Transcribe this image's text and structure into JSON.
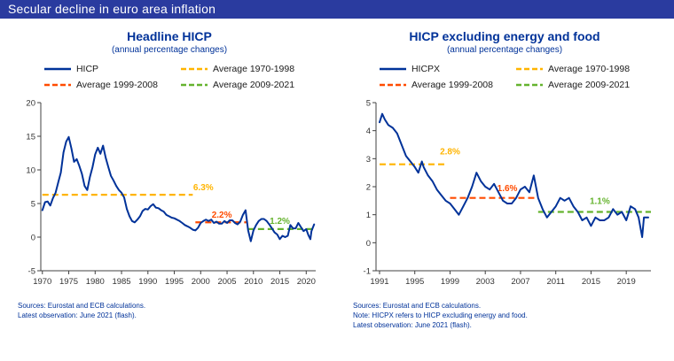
{
  "title": "Secular decline in euro area inflation",
  "colors": {
    "banner_bg": "#2a3b9f",
    "banner_text": "#ffffff",
    "title_blue": "#003299",
    "series_blue": "#003299",
    "yellow": "#FFB400",
    "orange": "#FF4B00",
    "green": "#65B32E",
    "axis": "#404040",
    "tick_text": "#333333",
    "source_text": "#003299"
  },
  "chart_data": [
    {
      "type": "line",
      "title": "Headline HICP",
      "subtitle": "(annual percentage changes)",
      "xlabel": "",
      "ylabel": "",
      "grid": false,
      "legend_position": "top",
      "ylim": [
        -5,
        20
      ],
      "yticks": [
        -5,
        0,
        5,
        10,
        15,
        20
      ],
      "xlim": [
        1969.7,
        2021.8
      ],
      "xticks": [
        1970,
        1975,
        1980,
        1985,
        1990,
        1995,
        2000,
        2005,
        2010,
        2015,
        2020
      ],
      "legend": [
        {
          "label": "HICP",
          "color": "#003299",
          "dash": "solid"
        },
        {
          "label": "Average 1999-2008",
          "color": "#FF4B00",
          "dash": "dashed"
        },
        {
          "label": "Average 1970-1998",
          "color": "#FFB400",
          "dash": "dashed"
        },
        {
          "label": "Average 2009-2021",
          "color": "#65B32E",
          "dash": "dashed"
        }
      ],
      "series": [
        {
          "name": "HICP",
          "color": "#003299",
          "points": [
            [
              1970,
              4.0
            ],
            [
              1970.5,
              5.2
            ],
            [
              1971,
              5.3
            ],
            [
              1971.5,
              4.7
            ],
            [
              1972,
              5.8
            ],
            [
              1972.5,
              6.6
            ],
            [
              1973,
              8.1
            ],
            [
              1973.5,
              9.6
            ],
            [
              1974,
              12.6
            ],
            [
              1974.5,
              14.2
            ],
            [
              1975,
              14.9
            ],
            [
              1975.5,
              13.2
            ],
            [
              1976,
              11.2
            ],
            [
              1976.5,
              11.6
            ],
            [
              1977,
              10.6
            ],
            [
              1977.5,
              9.4
            ],
            [
              1978,
              7.6
            ],
            [
              1978.5,
              7.0
            ],
            [
              1979,
              8.9
            ],
            [
              1979.5,
              10.4
            ],
            [
              1980,
              12.3
            ],
            [
              1980.5,
              13.3
            ],
            [
              1981,
              12.4
            ],
            [
              1981.5,
              13.6
            ],
            [
              1982,
              11.8
            ],
            [
              1982.5,
              10.4
            ],
            [
              1983,
              9.1
            ],
            [
              1983.5,
              8.4
            ],
            [
              1984,
              7.6
            ],
            [
              1984.5,
              7.0
            ],
            [
              1985,
              6.6
            ],
            [
              1985.5,
              5.9
            ],
            [
              1986,
              4.2
            ],
            [
              1986.5,
              3.1
            ],
            [
              1987,
              2.4
            ],
            [
              1987.5,
              2.2
            ],
            [
              1988,
              2.6
            ],
            [
              1988.5,
              3.1
            ],
            [
              1989,
              3.9
            ],
            [
              1989.5,
              4.2
            ],
            [
              1990,
              4.1
            ],
            [
              1990.5,
              4.6
            ],
            [
              1991,
              4.9
            ],
            [
              1991.5,
              4.4
            ],
            [
              1992,
              4.3
            ],
            [
              1992.5,
              4.0
            ],
            [
              1993,
              3.8
            ],
            [
              1993.5,
              3.3
            ],
            [
              1994,
              3.1
            ],
            [
              1994.5,
              2.9
            ],
            [
              1995,
              2.8
            ],
            [
              1995.5,
              2.6
            ],
            [
              1996,
              2.4
            ],
            [
              1996.5,
              2.1
            ],
            [
              1997,
              1.8
            ],
            [
              1997.5,
              1.6
            ],
            [
              1998,
              1.4
            ],
            [
              1998.5,
              1.1
            ],
            [
              1999,
              1.0
            ],
            [
              1999.5,
              1.4
            ],
            [
              2000,
              2.1
            ],
            [
              2000.5,
              2.4
            ],
            [
              2001,
              2.6
            ],
            [
              2001.5,
              2.4
            ],
            [
              2002,
              2.6
            ],
            [
              2002.5,
              2.1
            ],
            [
              2003,
              2.3
            ],
            [
              2003.5,
              2.0
            ],
            [
              2004,
              2.0
            ],
            [
              2004.5,
              2.4
            ],
            [
              2005,
              2.1
            ],
            [
              2005.5,
              2.5
            ],
            [
              2006,
              2.5
            ],
            [
              2006.5,
              2.1
            ],
            [
              2007,
              1.9
            ],
            [
              2007.5,
              2.3
            ],
            [
              2008,
              3.3
            ],
            [
              2008.5,
              4.0
            ],
            [
              2009,
              1.0
            ],
            [
              2009.5,
              -0.6
            ],
            [
              2010,
              1.0
            ],
            [
              2010.5,
              1.8
            ],
            [
              2011,
              2.4
            ],
            [
              2011.5,
              2.7
            ],
            [
              2012,
              2.7
            ],
            [
              2012.5,
              2.4
            ],
            [
              2013,
              1.9
            ],
            [
              2013.5,
              1.3
            ],
            [
              2014,
              0.7
            ],
            [
              2014.5,
              0.4
            ],
            [
              2015,
              -0.3
            ],
            [
              2015.5,
              0.2
            ],
            [
              2016,
              0.0
            ],
            [
              2016.5,
              0.2
            ],
            [
              2017,
              1.8
            ],
            [
              2017.5,
              1.3
            ],
            [
              2018,
              1.3
            ],
            [
              2018.5,
              2.1
            ],
            [
              2019,
              1.5
            ],
            [
              2019.5,
              0.9
            ],
            [
              2020,
              1.2
            ],
            [
              2020.4,
              0.3
            ],
            [
              2020.8,
              -0.3
            ],
            [
              2021,
              0.9
            ],
            [
              2021.5,
              1.9
            ]
          ]
        }
      ],
      "average_lines": [
        {
          "label": "Average 1970-1998",
          "value": 6.3,
          "x_start": 1970,
          "x_end": 1998.5,
          "color": "#FFB400",
          "annotation": "6.3%",
          "ann_x": 2000.5,
          "ann_y": 7.0
        },
        {
          "label": "Average 1999-2008",
          "value": 2.2,
          "x_start": 1999,
          "x_end": 2008.7,
          "color": "#FF4B00",
          "annotation": "2.2%",
          "ann_x": 2004.0,
          "ann_y": 2.9
        },
        {
          "label": "Average 2009-2021",
          "value": 1.2,
          "x_start": 2009,
          "x_end": 2021.8,
          "color": "#65B32E",
          "annotation": "1.2%",
          "ann_x": 2015.0,
          "ann_y": 2.0
        }
      ],
      "sources": [
        "Sources: Eurostat and ECB calculations.",
        "Latest observation: June 2021 (flash)."
      ]
    },
    {
      "type": "line",
      "title": "HICP excluding energy and food",
      "subtitle": "(annual percentage changes)",
      "xlabel": "",
      "ylabel": "",
      "grid": false,
      "legend_position": "top",
      "ylim": [
        -1,
        5
      ],
      "yticks": [
        -1,
        0,
        1,
        2,
        3,
        4,
        5
      ],
      "xlim": [
        1990.6,
        2021.8
      ],
      "xticks": [
        1991,
        1995,
        1999,
        2003,
        2007,
        2011,
        2015,
        2019
      ],
      "legend": [
        {
          "label": "HICPX",
          "color": "#003299",
          "dash": "solid"
        },
        {
          "label": "Average 1999-2008",
          "color": "#FF4B00",
          "dash": "dashed"
        },
        {
          "label": "Average 1970-1998",
          "color": "#FFB400",
          "dash": "dashed"
        },
        {
          "label": "Average 2009-2021",
          "color": "#65B32E",
          "dash": "dashed"
        }
      ],
      "series": [
        {
          "name": "HICPX",
          "color": "#003299",
          "points": [
            [
              1991,
              4.3
            ],
            [
              1991.3,
              4.6
            ],
            [
              1991.6,
              4.4
            ],
            [
              1992,
              4.2
            ],
            [
              1992.5,
              4.1
            ],
            [
              1993,
              3.9
            ],
            [
              1993.5,
              3.5
            ],
            [
              1994,
              3.1
            ],
            [
              1994.5,
              2.9
            ],
            [
              1995,
              2.7
            ],
            [
              1995.4,
              2.5
            ],
            [
              1995.8,
              2.9
            ],
            [
              1996,
              2.7
            ],
            [
              1996.5,
              2.4
            ],
            [
              1997,
              2.2
            ],
            [
              1997.5,
              1.9
            ],
            [
              1998,
              1.7
            ],
            [
              1998.5,
              1.5
            ],
            [
              1999,
              1.4
            ],
            [
              1999.5,
              1.2
            ],
            [
              2000,
              1.0
            ],
            [
              2000.5,
              1.3
            ],
            [
              2001,
              1.6
            ],
            [
              2001.5,
              2.0
            ],
            [
              2002,
              2.5
            ],
            [
              2002.5,
              2.2
            ],
            [
              2003,
              2.0
            ],
            [
              2003.5,
              1.9
            ],
            [
              2004,
              2.1
            ],
            [
              2004.5,
              1.8
            ],
            [
              2005,
              1.5
            ],
            [
              2005.5,
              1.4
            ],
            [
              2006,
              1.4
            ],
            [
              2006.5,
              1.6
            ],
            [
              2007,
              1.9
            ],
            [
              2007.5,
              2.0
            ],
            [
              2008,
              1.8
            ],
            [
              2008.5,
              2.4
            ],
            [
              2009,
              1.6
            ],
            [
              2009.5,
              1.2
            ],
            [
              2010,
              0.9
            ],
            [
              2010.5,
              1.1
            ],
            [
              2011,
              1.3
            ],
            [
              2011.5,
              1.6
            ],
            [
              2012,
              1.5
            ],
            [
              2012.5,
              1.6
            ],
            [
              2013,
              1.3
            ],
            [
              2013.5,
              1.1
            ],
            [
              2014,
              0.8
            ],
            [
              2014.5,
              0.9
            ],
            [
              2015,
              0.6
            ],
            [
              2015.5,
              0.9
            ],
            [
              2016,
              0.8
            ],
            [
              2016.5,
              0.8
            ],
            [
              2017,
              0.9
            ],
            [
              2017.5,
              1.2
            ],
            [
              2018,
              1.0
            ],
            [
              2018.5,
              1.1
            ],
            [
              2019,
              0.8
            ],
            [
              2019.5,
              1.3
            ],
            [
              2020,
              1.2
            ],
            [
              2020.4,
              0.9
            ],
            [
              2020.8,
              0.2
            ],
            [
              2021,
              0.9
            ],
            [
              2021.5,
              0.9
            ]
          ]
        }
      ],
      "average_lines": [
        {
          "label": "Average 1970-1998",
          "value": 2.8,
          "x_start": 1991,
          "x_end": 1998.5,
          "color": "#FFB400",
          "annotation": "2.8%",
          "ann_x": 1999.0,
          "ann_y": 3.15
        },
        {
          "label": "Average 1999-2008",
          "value": 1.6,
          "x_start": 1999,
          "x_end": 2008.7,
          "color": "#FF4B00",
          "annotation": "1.6%",
          "ann_x": 2005.5,
          "ann_y": 1.85
        },
        {
          "label": "Average 2009-2021",
          "value": 1.1,
          "x_start": 2009,
          "x_end": 2021.8,
          "color": "#65B32E",
          "annotation": "1.1%",
          "ann_x": 2016.0,
          "ann_y": 1.38
        }
      ],
      "sources": [
        "Sources: Eurostat and ECB calculations.",
        "Note: HICPX refers to HICP excluding energy and food.",
        "Latest observation: June 2021 (flash)."
      ]
    }
  ]
}
